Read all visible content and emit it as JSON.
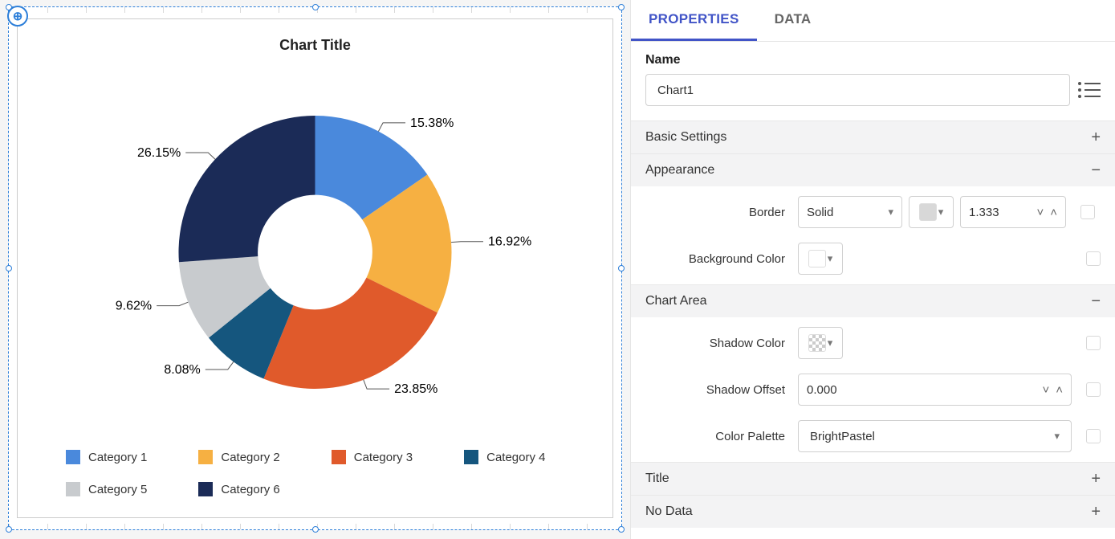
{
  "chart": {
    "title": "Chart Title",
    "type": "donut",
    "innerRadiusRatio": 0.42,
    "background_color": "#ffffff",
    "slices": [
      {
        "label": "Category 1",
        "value": 15.38,
        "labelText": "15.38%",
        "color": "#4a89dc"
      },
      {
        "label": "Category 2",
        "value": 16.92,
        "labelText": "16.92%",
        "color": "#f6b042"
      },
      {
        "label": "Category 3",
        "value": 23.85,
        "labelText": "23.85%",
        "color": "#e05a2b"
      },
      {
        "label": "Category 4",
        "value": 8.08,
        "labelText": "8.08%",
        "color": "#15567e"
      },
      {
        "label": "Category 5",
        "value": 9.62,
        "labelText": "9.62%",
        "color": "#c8cbce"
      },
      {
        "label": "Category 6",
        "value": 26.15,
        "labelText": "26.15%",
        "color": "#1b2b57"
      }
    ],
    "legend_fontsize": 15,
    "label_fontsize": 16,
    "title_fontsize": 18
  },
  "tabs": {
    "properties": "PROPERTIES",
    "data": "DATA",
    "active": "properties"
  },
  "name": {
    "label": "Name",
    "value": "Chart1"
  },
  "sections": {
    "basic": {
      "title": "Basic Settings",
      "collapsed": true
    },
    "appearance": {
      "title": "Appearance",
      "collapsed": false,
      "border_label": "Border",
      "border_style": "Solid",
      "border_color": "#d8d8d8",
      "border_width": "1.333",
      "bg_label": "Background Color",
      "bg_color": "#ffffff"
    },
    "chartArea": {
      "title": "Chart Area",
      "collapsed": false,
      "shadow_color_label": "Shadow Color",
      "shadow_color": "transparent",
      "shadow_offset_label": "Shadow Offset",
      "shadow_offset": "0.000",
      "palette_label": "Color Palette",
      "palette_value": "BrightPastel"
    },
    "titleSec": {
      "title": "Title",
      "collapsed": true
    },
    "nodata": {
      "title": "No Data",
      "collapsed": true
    }
  }
}
